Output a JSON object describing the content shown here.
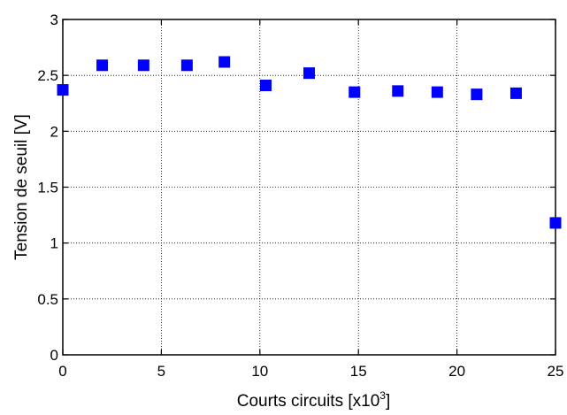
{
  "chart_data": {
    "type": "scatter",
    "title": "",
    "xlabel": "Courts circuits [x10",
    "xlabel_sup": "3",
    "xlabel_close": "]",
    "ylabel": "Tension de seuil [V]",
    "xlim": [
      0,
      25
    ],
    "ylim": [
      0,
      3
    ],
    "xticks": [
      0,
      5,
      10,
      15,
      20,
      25
    ],
    "yticks": [
      0,
      0.5,
      1,
      1.5,
      2,
      2.5,
      3
    ],
    "xtick_labels": [
      "0",
      "5",
      "10",
      "15",
      "20",
      "25"
    ],
    "ytick_labels": [
      "0",
      "0.5",
      "1",
      "1.5",
      "2",
      "2.5",
      "3"
    ],
    "grid": true,
    "marker": "square",
    "color": "#0000ff",
    "series": [
      {
        "x": [
          0,
          2,
          4.1,
          6.3,
          8.2,
          10.3,
          12.5,
          14.8,
          17,
          19,
          21,
          23,
          25
        ],
        "y": [
          2.37,
          2.59,
          2.59,
          2.59,
          2.62,
          2.41,
          2.52,
          2.35,
          2.36,
          2.35,
          2.33,
          2.34,
          1.18
        ]
      }
    ]
  }
}
